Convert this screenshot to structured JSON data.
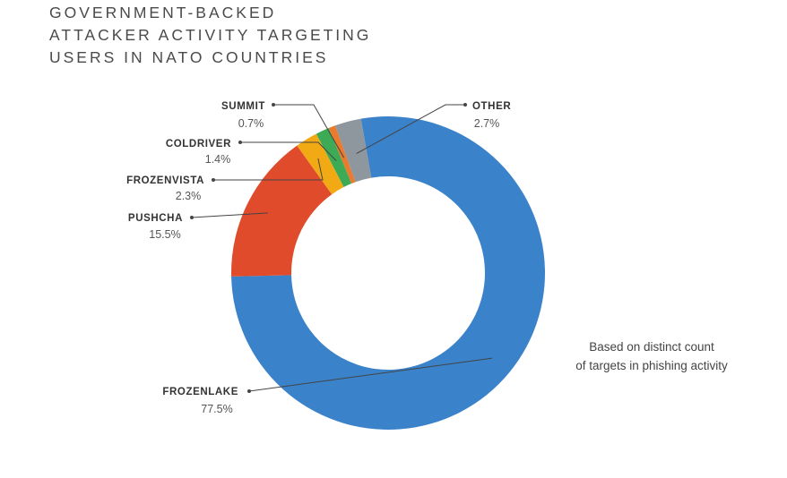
{
  "title": {
    "line1": "GOVERNMENT-BACKED",
    "line2": "ATTACKER ACTIVITY TARGETING",
    "line3": "USERS IN NATO COUNTRIES"
  },
  "note": {
    "line1": "Based on distinct count",
    "line2": "of targets in phishing activity"
  },
  "chart_data": {
    "type": "pie",
    "variant": "donut",
    "title": "GOVERNMENT-BACKED ATTACKER ACTIVITY TARGETING USERS IN NATO COUNTRIES",
    "annotation": "Based on distinct count of targets in phishing activity",
    "unit": "%",
    "slices": [
      {
        "key": "frozenlake",
        "label": "FROZENLAKE",
        "value": 77.5,
        "display": "77.5%",
        "color": "#3A82C9"
      },
      {
        "key": "pushcha",
        "label": "PUSHCHA",
        "value": 15.5,
        "display": "15.5%",
        "color": "#E04B2C"
      },
      {
        "key": "frozenvista",
        "label": "FROZENVISTA",
        "value": 2.3,
        "display": "2.3%",
        "color": "#F2AA14"
      },
      {
        "key": "coldriver",
        "label": "COLDRIVER",
        "value": 1.4,
        "display": "1.4%",
        "color": "#3DAA55"
      },
      {
        "key": "summit",
        "label": "SUMMIT",
        "value": 0.7,
        "display": "0.7%",
        "color": "#EA7A2D"
      },
      {
        "key": "other",
        "label": "OTHER",
        "value": 2.7,
        "display": "2.7%",
        "color": "#8E979E"
      }
    ]
  }
}
